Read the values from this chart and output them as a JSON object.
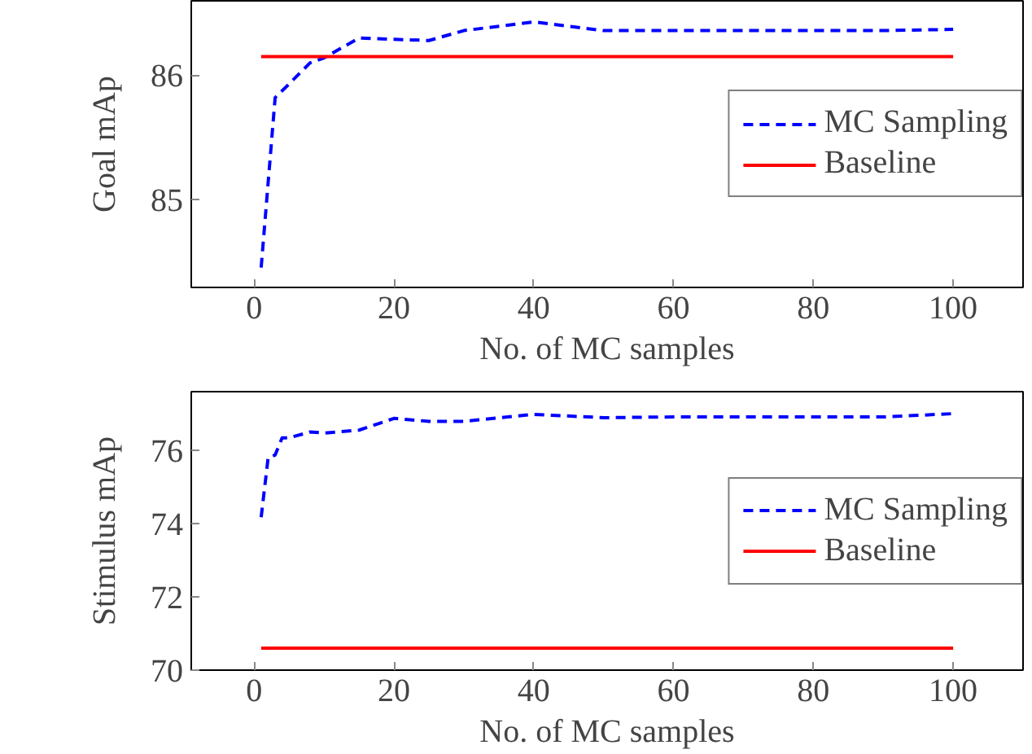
{
  "chart_data": [
    {
      "type": "line",
      "xlabel": "No. of MC samples",
      "ylabel": "Goal mAp",
      "xlim": [
        -9,
        110
      ],
      "ylim": [
        84.29,
        86.6
      ],
      "xticks": [
        0,
        20,
        40,
        60,
        80,
        100
      ],
      "yticks": [
        85,
        86
      ],
      "grid": false,
      "legend": "right",
      "series": [
        {
          "name": "MC Sampling",
          "color": "#0000ff",
          "line_style": "dashed",
          "x": [
            1,
            3,
            5,
            8,
            10,
            15,
            20,
            25,
            30,
            40,
            50,
            60,
            70,
            80,
            90,
            100
          ],
          "values": [
            84.45,
            85.82,
            85.93,
            86.1,
            86.14,
            86.3,
            86.29,
            86.28,
            86.36,
            86.43,
            86.36,
            86.36,
            86.36,
            86.36,
            86.36,
            86.37
          ]
        },
        {
          "name": "Baseline",
          "color": "#ff0000",
          "line_style": "solid",
          "x": [
            1,
            100
          ],
          "values": [
            86.15,
            86.15
          ]
        }
      ]
    },
    {
      "type": "line",
      "xlabel": "No. of MC samples",
      "ylabel": "Stimulus mAp",
      "xlim": [
        -9,
        110
      ],
      "ylim": [
        70,
        77.6
      ],
      "xticks": [
        0,
        20,
        40,
        60,
        80,
        100
      ],
      "yticks": [
        70,
        72,
        74,
        76
      ],
      "grid": false,
      "legend": "right",
      "series": [
        {
          "name": "MC Sampling",
          "color": "#0000ff",
          "line_style": "dashed",
          "x": [
            1,
            2,
            3,
            4,
            5,
            8,
            10,
            15,
            20,
            25,
            30,
            40,
            50,
            60,
            70,
            80,
            90,
            100
          ],
          "values": [
            74.17,
            75.8,
            75.87,
            76.34,
            76.34,
            76.5,
            76.47,
            76.55,
            76.87,
            76.79,
            76.79,
            76.98,
            76.89,
            76.91,
            76.91,
            76.91,
            76.91,
            77.0
          ]
        },
        {
          "name": "Baseline",
          "color": "#ff0000",
          "line_style": "solid",
          "x": [
            1,
            100
          ],
          "values": [
            70.6,
            70.6
          ]
        }
      ]
    }
  ]
}
